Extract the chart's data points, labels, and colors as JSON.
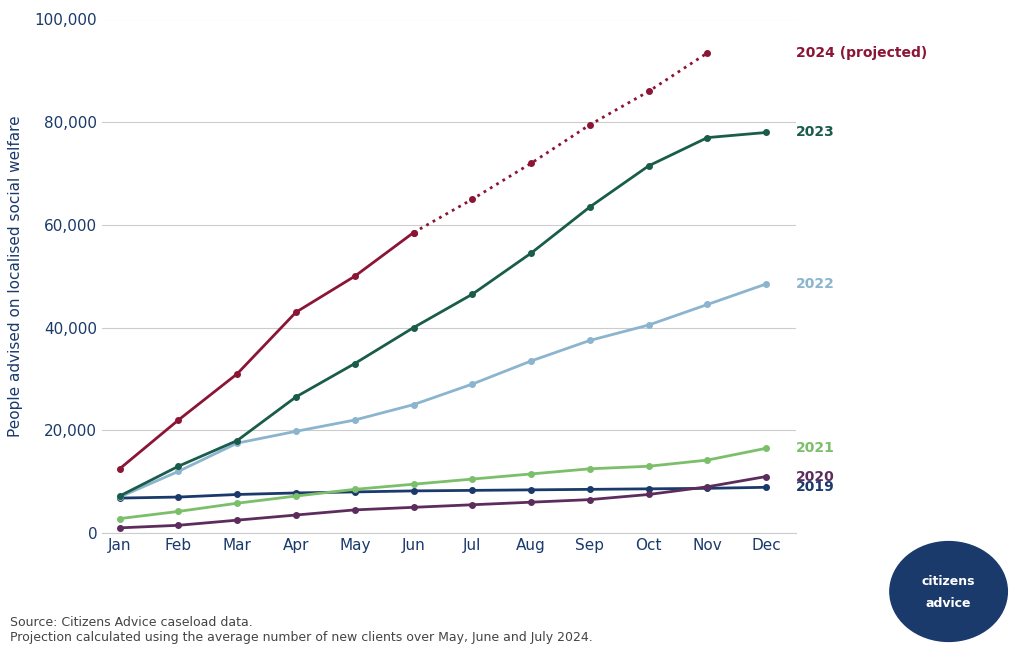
{
  "months": [
    "Jan",
    "Feb",
    "Mar",
    "Apr",
    "May",
    "Jun",
    "Jul",
    "Aug",
    "Sep",
    "Oct",
    "Nov",
    "Dec"
  ],
  "series": {
    "2024_solid": {
      "values": [
        12500,
        22000,
        31000,
        43000,
        50000,
        58500,
        null,
        null,
        null,
        null,
        null,
        null
      ],
      "color": "#8B1535",
      "linestyle": "solid"
    },
    "2024_projected": {
      "values": [
        null,
        null,
        null,
        null,
        null,
        58500,
        65000,
        72000,
        79500,
        86000,
        93500,
        null
      ],
      "color": "#8B1535",
      "linestyle": "dotted",
      "label": "2024 (projected)"
    },
    "2023": {
      "values": [
        7200,
        13000,
        18000,
        26500,
        33000,
        40000,
        46500,
        54500,
        63500,
        71500,
        77000,
        78000
      ],
      "color": "#1A5C4A",
      "linestyle": "solid",
      "label": "2023"
    },
    "2022": {
      "values": [
        7000,
        12000,
        17500,
        19800,
        22000,
        25000,
        29000,
        33500,
        37500,
        40500,
        44500,
        48500
      ],
      "color": "#8BB4CE",
      "linestyle": "solid",
      "label": "2022"
    },
    "2021": {
      "values": [
        2800,
        4200,
        5800,
        7200,
        8500,
        9500,
        10500,
        11500,
        12500,
        13000,
        14200,
        16500
      ],
      "color": "#7BBF6A",
      "linestyle": "solid",
      "label": "2021"
    },
    "2020": {
      "values": [
        1000,
        1500,
        2500,
        3500,
        4500,
        5000,
        5500,
        6000,
        6500,
        7500,
        9000,
        11000
      ],
      "color": "#5C2D5C",
      "linestyle": "solid",
      "label": "2020"
    },
    "2019": {
      "values": [
        6800,
        7000,
        7500,
        7800,
        8000,
        8200,
        8300,
        8400,
        8500,
        8600,
        8700,
        8900
      ],
      "color": "#1A3A6B",
      "linestyle": "solid",
      "label": "2019"
    }
  },
  "ylabel": "People advised on localised social welfare",
  "ylim": [
    0,
    100000
  ],
  "yticks": [
    0,
    20000,
    40000,
    60000,
    80000,
    100000
  ],
  "background_color": "#FFFFFF",
  "grid_color": "#CCCCCC",
  "source_text": "Source: Citizens Advice caseload data.\nProjection calculated using the average number of new clients over May, June and July 2024.",
  "labels": {
    "2024 (projected)": {
      "color": "#8B1535",
      "y": 93500
    },
    "2023": {
      "color": "#1A5C4A",
      "y": 78000
    },
    "2022": {
      "color": "#8BB4CE",
      "y": 48500
    },
    "2021": {
      "color": "#7BBF6A",
      "y": 16500
    },
    "2020": {
      "color": "#5C2D5C",
      "y": 11000
    },
    "2019": {
      "color": "#1A3A6B",
      "y": 8900
    }
  },
  "axis_label_color": "#1A3A6B",
  "tick_label_color": "#1A3A6B"
}
